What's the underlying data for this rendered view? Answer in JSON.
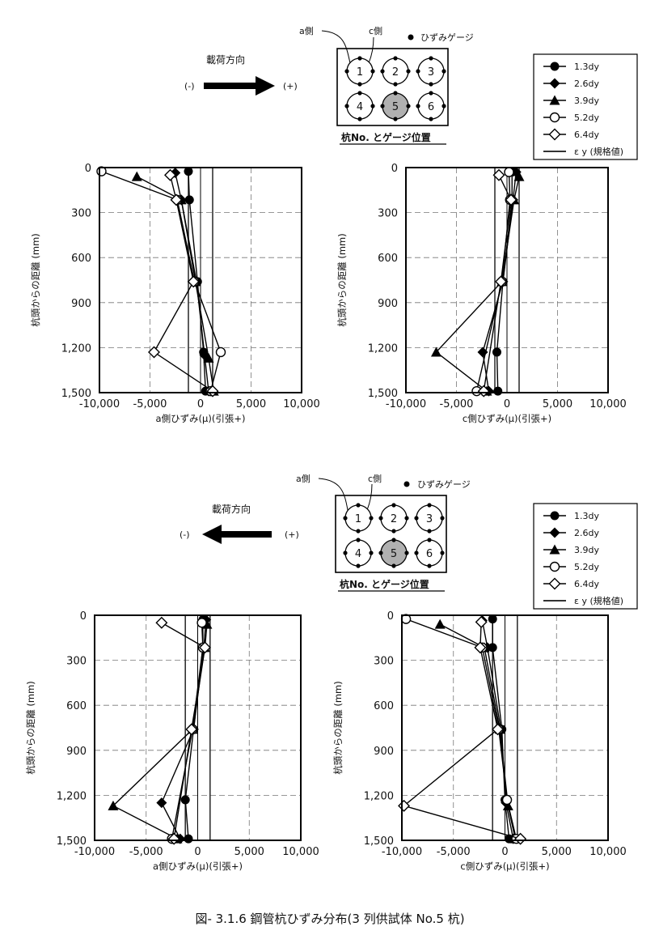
{
  "figure_caption": "図- 3.1.6  鋼管杭ひずみ分布(3 列供試体  No.5 杭)",
  "top_section": {
    "load_direction_label": "載荷方向",
    "minus_label": "(-)",
    "plus_label": "(+)",
    "a_side_label": "a側",
    "c_side_label": "c側",
    "gauge_label": "ひずみゲージ",
    "diagram_caption": "杭No. とゲージ位置",
    "piles": [
      "1",
      "2",
      "3",
      "4",
      "5",
      "6"
    ]
  },
  "bottom_section": {
    "load_direction_label": "載荷方向",
    "minus_label": "(-)",
    "plus_label": "(+)",
    "a_side_label": "a側",
    "c_side_label": "c側",
    "gauge_label": "ひずみゲージ",
    "diagram_caption": "杭No. とゲージ位置",
    "piles": [
      "1",
      "2",
      "3",
      "4",
      "5",
      "6"
    ]
  },
  "legend": {
    "entries": [
      "1.3dy",
      "2.6dy",
      "3.9dy",
      "5.2dy",
      "6.4dy"
    ],
    "ey_label": "ε y (規格値)"
  },
  "chart_data": [
    {
      "type": "line",
      "xlabel": "a側ひずみ(μ)(引張+)",
      "ylabel": "杭頭からの距離 (mm)",
      "xlim": [
        -10000,
        10000
      ],
      "ylim": [
        0,
        1500
      ],
      "x_ticks": [
        "-10,000",
        "-5,000",
        "0",
        "5,000",
        "10,000"
      ],
      "y_ticks": [
        "0",
        "300",
        "600",
        "900",
        "1,200",
        "1,500"
      ],
      "epsilon_y": [
        -1200,
        1200
      ],
      "series": [
        {
          "name": "1.3dy",
          "points": [
            [
              -1200,
              25
            ],
            [
              -1100,
              215
            ],
            [
              -300,
              760
            ],
            [
              300,
              1230
            ],
            [
              500,
              1490
            ]
          ]
        },
        {
          "name": "2.6dy",
          "points": [
            [
              -2500,
              35
            ],
            [
              -1900,
              215
            ],
            [
              -400,
              760
            ],
            [
              400,
              1250
            ],
            [
              800,
              1490
            ]
          ]
        },
        {
          "name": "3.9dy",
          "points": [
            [
              -6300,
              60
            ],
            [
              -1900,
              215
            ],
            [
              -500,
              760
            ],
            [
              800,
              1270
            ],
            [
              1300,
              1490
            ]
          ]
        },
        {
          "name": "5.2dy",
          "points": [
            [
              -9800,
              25
            ],
            [
              -2300,
              215
            ],
            [
              -600,
              760
            ],
            [
              2000,
              1230
            ],
            [
              1000,
              1490
            ]
          ]
        },
        {
          "name": "6.4dy",
          "points": [
            [
              -3000,
              50
            ],
            [
              -2400,
              215
            ],
            [
              -700,
              760
            ],
            [
              -4600,
              1230
            ],
            [
              1200,
              1490
            ]
          ]
        }
      ]
    },
    {
      "type": "line",
      "xlabel": "c側ひずみ(μ)(引張+)",
      "ylabel": "杭頭からの距離 (mm)",
      "xlim": [
        -10000,
        10000
      ],
      "ylim": [
        0,
        1500
      ],
      "x_ticks": [
        "-10,000",
        "-5,000",
        "0",
        "5,000",
        "10,000"
      ],
      "y_ticks": [
        "0",
        "300",
        "600",
        "900",
        "1,200",
        "1,500"
      ],
      "epsilon_y": [
        -1200,
        1200
      ],
      "series": [
        {
          "name": "1.3dy",
          "points": [
            [
              500,
              30
            ],
            [
              500,
              215
            ],
            [
              -400,
              760
            ],
            [
              -1000,
              1230
            ],
            [
              -900,
              1490
            ]
          ]
        },
        {
          "name": "2.6dy",
          "points": [
            [
              900,
              30
            ],
            [
              600,
              215
            ],
            [
              -400,
              760
            ],
            [
              -2400,
              1230
            ],
            [
              -1800,
              1490
            ]
          ]
        },
        {
          "name": "3.9dy",
          "points": [
            [
              1200,
              60
            ],
            [
              700,
              215
            ],
            [
              -500,
              760
            ],
            [
              -7000,
              1230
            ],
            [
              -2000,
              1490
            ]
          ]
        },
        {
          "name": "5.2dy",
          "points": [
            [
              200,
              30
            ],
            [
              300,
              215
            ],
            [
              -500,
              760
            ],
            [
              -3000,
              1490
            ]
          ]
        },
        {
          "name": "6.4dy",
          "points": [
            [
              -800,
              50
            ],
            [
              400,
              215
            ],
            [
              -600,
              760
            ],
            [
              -2300,
              1490
            ]
          ]
        }
      ]
    },
    {
      "type": "line",
      "xlabel": "a側ひずみ(μ)(引張+)",
      "ylabel": "杭頭からの距離 (mm)",
      "xlim": [
        -10000,
        10000
      ],
      "ylim": [
        0,
        1500
      ],
      "x_ticks": [
        "-10,000",
        "-5,000",
        "0",
        "5,000",
        "10,000"
      ],
      "y_ticks": [
        "0",
        "300",
        "600",
        "900",
        "1,200",
        "1,500"
      ],
      "epsilon_y": [
        -1200,
        1200
      ],
      "series": [
        {
          "name": "1.3dy",
          "points": [
            [
              500,
              30
            ],
            [
              500,
              215
            ],
            [
              -400,
              760
            ],
            [
              -1200,
              1230
            ],
            [
              -900,
              1490
            ]
          ]
        },
        {
          "name": "2.6dy",
          "points": [
            [
              800,
              30
            ],
            [
              600,
              215
            ],
            [
              -400,
              760
            ],
            [
              -3500,
              1250
            ],
            [
              -1700,
              1490
            ]
          ]
        },
        {
          "name": "3.9dy",
          "points": [
            [
              900,
              60
            ],
            [
              700,
              215
            ],
            [
              -500,
              760
            ],
            [
              -8200,
              1270
            ],
            [
              -2000,
              1490
            ]
          ]
        },
        {
          "name": "5.2dy",
          "points": [
            [
              400,
              50
            ],
            [
              500,
              215
            ],
            [
              -500,
              760
            ],
            [
              -2500,
              1490
            ]
          ]
        },
        {
          "name": "6.4dy",
          "points": [
            [
              -3500,
              50
            ],
            [
              700,
              215
            ],
            [
              -600,
              760
            ],
            [
              -2300,
              1490
            ]
          ]
        }
      ]
    },
    {
      "type": "line",
      "xlabel": "c側ひずみ(μ)(引張+)",
      "ylabel": "杭頭からの距離 (mm)",
      "xlim": [
        -10000,
        10000
      ],
      "ylim": [
        0,
        1500
      ],
      "x_ticks": [
        "-10,000",
        "-5,000",
        "0",
        "5,000",
        "10,000"
      ],
      "y_ticks": [
        "0",
        "300",
        "600",
        "900",
        "1,200",
        "1,500"
      ],
      "epsilon_y": [
        -1200,
        1200
      ],
      "series": [
        {
          "name": "1.3dy",
          "points": [
            [
              -1200,
              25
            ],
            [
              -1200,
              215
            ],
            [
              -300,
              760
            ],
            [
              0,
              1230
            ],
            [
              400,
              1490
            ]
          ]
        },
        {
          "name": "2.6dy",
          "points": [
            [
              -2200,
              35
            ],
            [
              -1700,
              215
            ],
            [
              -400,
              760
            ],
            [
              100,
              1250
            ],
            [
              800,
              1490
            ]
          ]
        },
        {
          "name": "3.9dy",
          "points": [
            [
              -6300,
              60
            ],
            [
              -2000,
              215
            ],
            [
              -500,
              760
            ],
            [
              300,
              1270
            ],
            [
              1000,
              1490
            ]
          ]
        },
        {
          "name": "5.2dy",
          "points": [
            [
              -9600,
              25
            ],
            [
              -2200,
              215
            ],
            [
              -600,
              760
            ],
            [
              200,
              1230
            ],
            [
              1100,
              1490
            ]
          ]
        },
        {
          "name": "6.4dy",
          "points": [
            [
              -2300,
              45
            ],
            [
              -2400,
              215
            ],
            [
              -700,
              760
            ],
            [
              -9800,
              1270
            ],
            [
              1500,
              1490
            ]
          ]
        }
      ]
    }
  ]
}
